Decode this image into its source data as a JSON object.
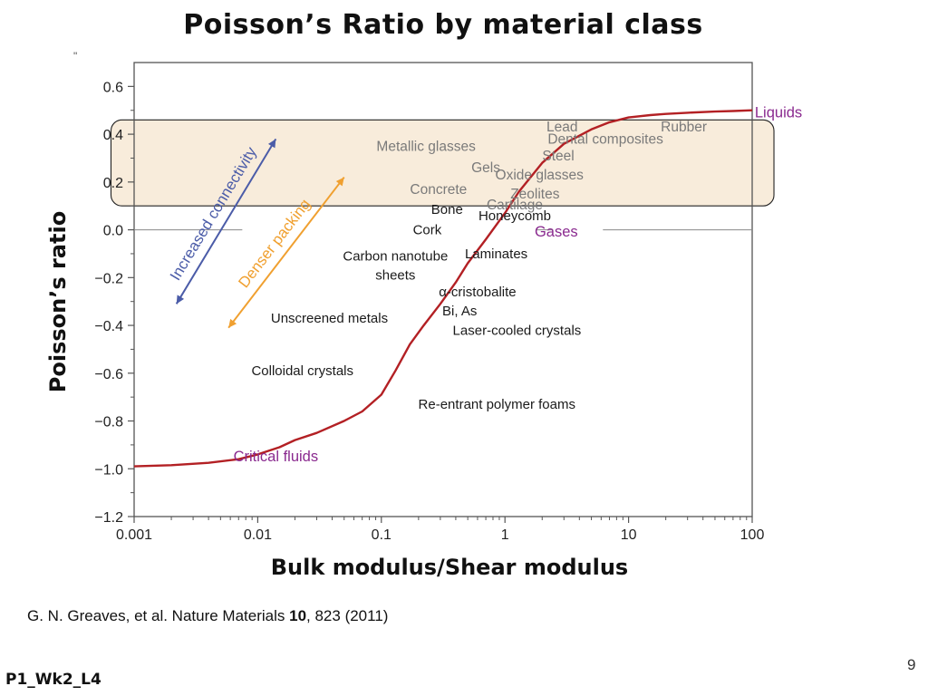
{
  "title": "Poisson’s Ratio by material class",
  "citation": {
    "prefix": "G. N. Greaves, et al. Nature Materials ",
    "volume": "10",
    "suffix": ", 823 (2011)"
  },
  "page_number": "9",
  "footer_label": "P1_Wk2_L4",
  "colors": {
    "curve": "#b32024",
    "class_label": "#8a2a8f",
    "muted_label": "#7a7a7a",
    "dark_label": "#1a1a1a",
    "connectivity_arrow": "#4b5ca8",
    "packing_arrow": "#f0a030",
    "highlight_fill": "#f5e6cf",
    "gray_line": "#888888"
  },
  "chart_data": {
    "type": "line",
    "xscale": "log",
    "xlabel": "Bulk modulus/Shear modulus",
    "ylabel": "Poisson’s ratio",
    "xlim": [
      0.001,
      100
    ],
    "ylim": [
      -1.2,
      0.7
    ],
    "xticks": [
      0.001,
      0.01,
      0.1,
      1,
      10,
      100
    ],
    "xtick_labels": [
      "0.001",
      "0.01",
      "0.1",
      "1",
      "10",
      "100"
    ],
    "yticks": [
      0.6,
      0.4,
      0.2,
      0.0,
      -0.2,
      -0.4,
      -0.6,
      -0.8,
      -1.0,
      -1.2
    ],
    "ytick_labels": [
      "0.6",
      "0.4",
      "0.2",
      "0.0",
      "−0.2",
      "−0.4",
      "−0.6",
      "−0.8",
      "−1.0",
      "−1.2"
    ],
    "grid": false,
    "highlight_band": {
      "y_range": [
        0.1,
        0.46
      ],
      "x_range": [
        0.00065,
        150
      ]
    },
    "gases_line": {
      "y": 0.0
    },
    "arrows": [
      {
        "name": "Increased connectivity",
        "from": [
          0.014,
          0.38
        ],
        "to": [
          0.0022,
          -0.31
        ]
      },
      {
        "name": "Denser packing",
        "from": [
          0.05,
          0.22
        ],
        "to": [
          0.0058,
          -0.41
        ]
      }
    ],
    "annotations": [
      {
        "text": "Liquids",
        "x": 105,
        "y": 0.49,
        "style": "class"
      },
      {
        "text": "Gases",
        "x": 2.6,
        "y": -0.01,
        "style": "class"
      },
      {
        "text": "Critical fluids",
        "x": 0.014,
        "y": -0.95,
        "style": "class"
      },
      {
        "text": "Lead",
        "x": 2.9,
        "y": 0.43,
        "style": "muted"
      },
      {
        "text": "Rubber",
        "x": 28,
        "y": 0.43,
        "style": "muted"
      },
      {
        "text": "Metallic glasses",
        "x": 0.23,
        "y": 0.35,
        "style": "muted"
      },
      {
        "text": "Dental composites",
        "x": 6.5,
        "y": 0.38,
        "style": "muted"
      },
      {
        "text": "Gels",
        "x": 0.7,
        "y": 0.26,
        "style": "muted"
      },
      {
        "text": "Steel",
        "x": 2.7,
        "y": 0.31,
        "style": "muted"
      },
      {
        "text": "Oxide glasses",
        "x": 1.9,
        "y": 0.23,
        "style": "muted"
      },
      {
        "text": "Concrete",
        "x": 0.29,
        "y": 0.17,
        "style": "muted"
      },
      {
        "text": "Zeolites",
        "x": 1.75,
        "y": 0.15,
        "style": "muted"
      },
      {
        "text": "Cartilage",
        "x": 1.2,
        "y": 0.105,
        "style": "muted"
      },
      {
        "text": "Bone",
        "x": 0.34,
        "y": 0.085,
        "style": "dark"
      },
      {
        "text": "Honeycomb",
        "x": 1.2,
        "y": 0.06,
        "style": "dark"
      },
      {
        "text": "Cork",
        "x": 0.235,
        "y": 0.0,
        "style": "dark"
      },
      {
        "text": "Laminates",
        "x": 0.85,
        "y": -0.1,
        "style": "dark"
      },
      {
        "text": "Carbon nanotube",
        "x": 0.13,
        "y": -0.11,
        "style": "dark"
      },
      {
        "text": "sheets",
        "x": 0.13,
        "y": -0.19,
        "style": "dark"
      },
      {
        "text": "α-cristobalite",
        "x": 0.6,
        "y": -0.26,
        "style": "dark"
      },
      {
        "text": "Bi, As",
        "x": 0.43,
        "y": -0.34,
        "style": "dark"
      },
      {
        "text": "Unscreened metals",
        "x": 0.038,
        "y": -0.37,
        "style": "dark"
      },
      {
        "text": "Laser-cooled crystals",
        "x": 1.25,
        "y": -0.42,
        "style": "dark"
      },
      {
        "text": "Colloidal crystals",
        "x": 0.023,
        "y": -0.59,
        "style": "dark"
      },
      {
        "text": "Re-entrant polymer foams",
        "x": 0.86,
        "y": -0.73,
        "style": "dark"
      }
    ],
    "series": [
      {
        "x": [
          0.001,
          0.002,
          0.004,
          0.007,
          0.01,
          0.015,
          0.02,
          0.03,
          0.05,
          0.07,
          0.1,
          0.13,
          0.17,
          0.22,
          0.3,
          0.4,
          0.5,
          0.7,
          1,
          1.3,
          2,
          3,
          5,
          7,
          10,
          15,
          20,
          30,
          50,
          70,
          100
        ],
        "y": [
          -0.99,
          -0.985,
          -0.975,
          -0.96,
          -0.94,
          -0.91,
          -0.88,
          -0.85,
          -0.8,
          -0.76,
          -0.69,
          -0.59,
          -0.48,
          -0.4,
          -0.31,
          -0.22,
          -0.14,
          -0.04,
          0.07,
          0.16,
          0.28,
          0.36,
          0.42,
          0.45,
          0.47,
          0.48,
          0.485,
          0.49,
          0.495,
          0.497,
          0.5
        ]
      }
    ]
  }
}
